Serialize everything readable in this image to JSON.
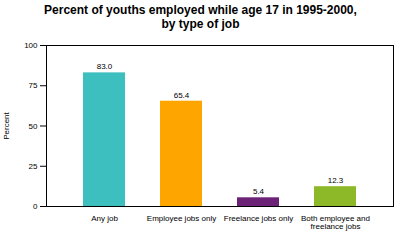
{
  "chart_data": {
    "type": "bar",
    "title": "Percent of youths employed while age 17 in 1995-2000,\nby type of job",
    "categories": [
      "Any job",
      "Employee jobs only",
      "Freelance jobs only",
      "Both employee and\nfreelance jobs"
    ],
    "values": [
      83.0,
      65.4,
      5.4,
      12.3
    ],
    "value_labels": [
      "83.0",
      "65.4",
      "5.4",
      "12.3"
    ],
    "colors": [
      "#3DBFBF",
      "#FFA500",
      "#6B2277",
      "#8DB828"
    ],
    "ylabel": "Percent",
    "ylim": [
      0,
      100
    ],
    "yticks": [
      0,
      25,
      50,
      75,
      100
    ],
    "data_labels": true,
    "grid": false
  }
}
